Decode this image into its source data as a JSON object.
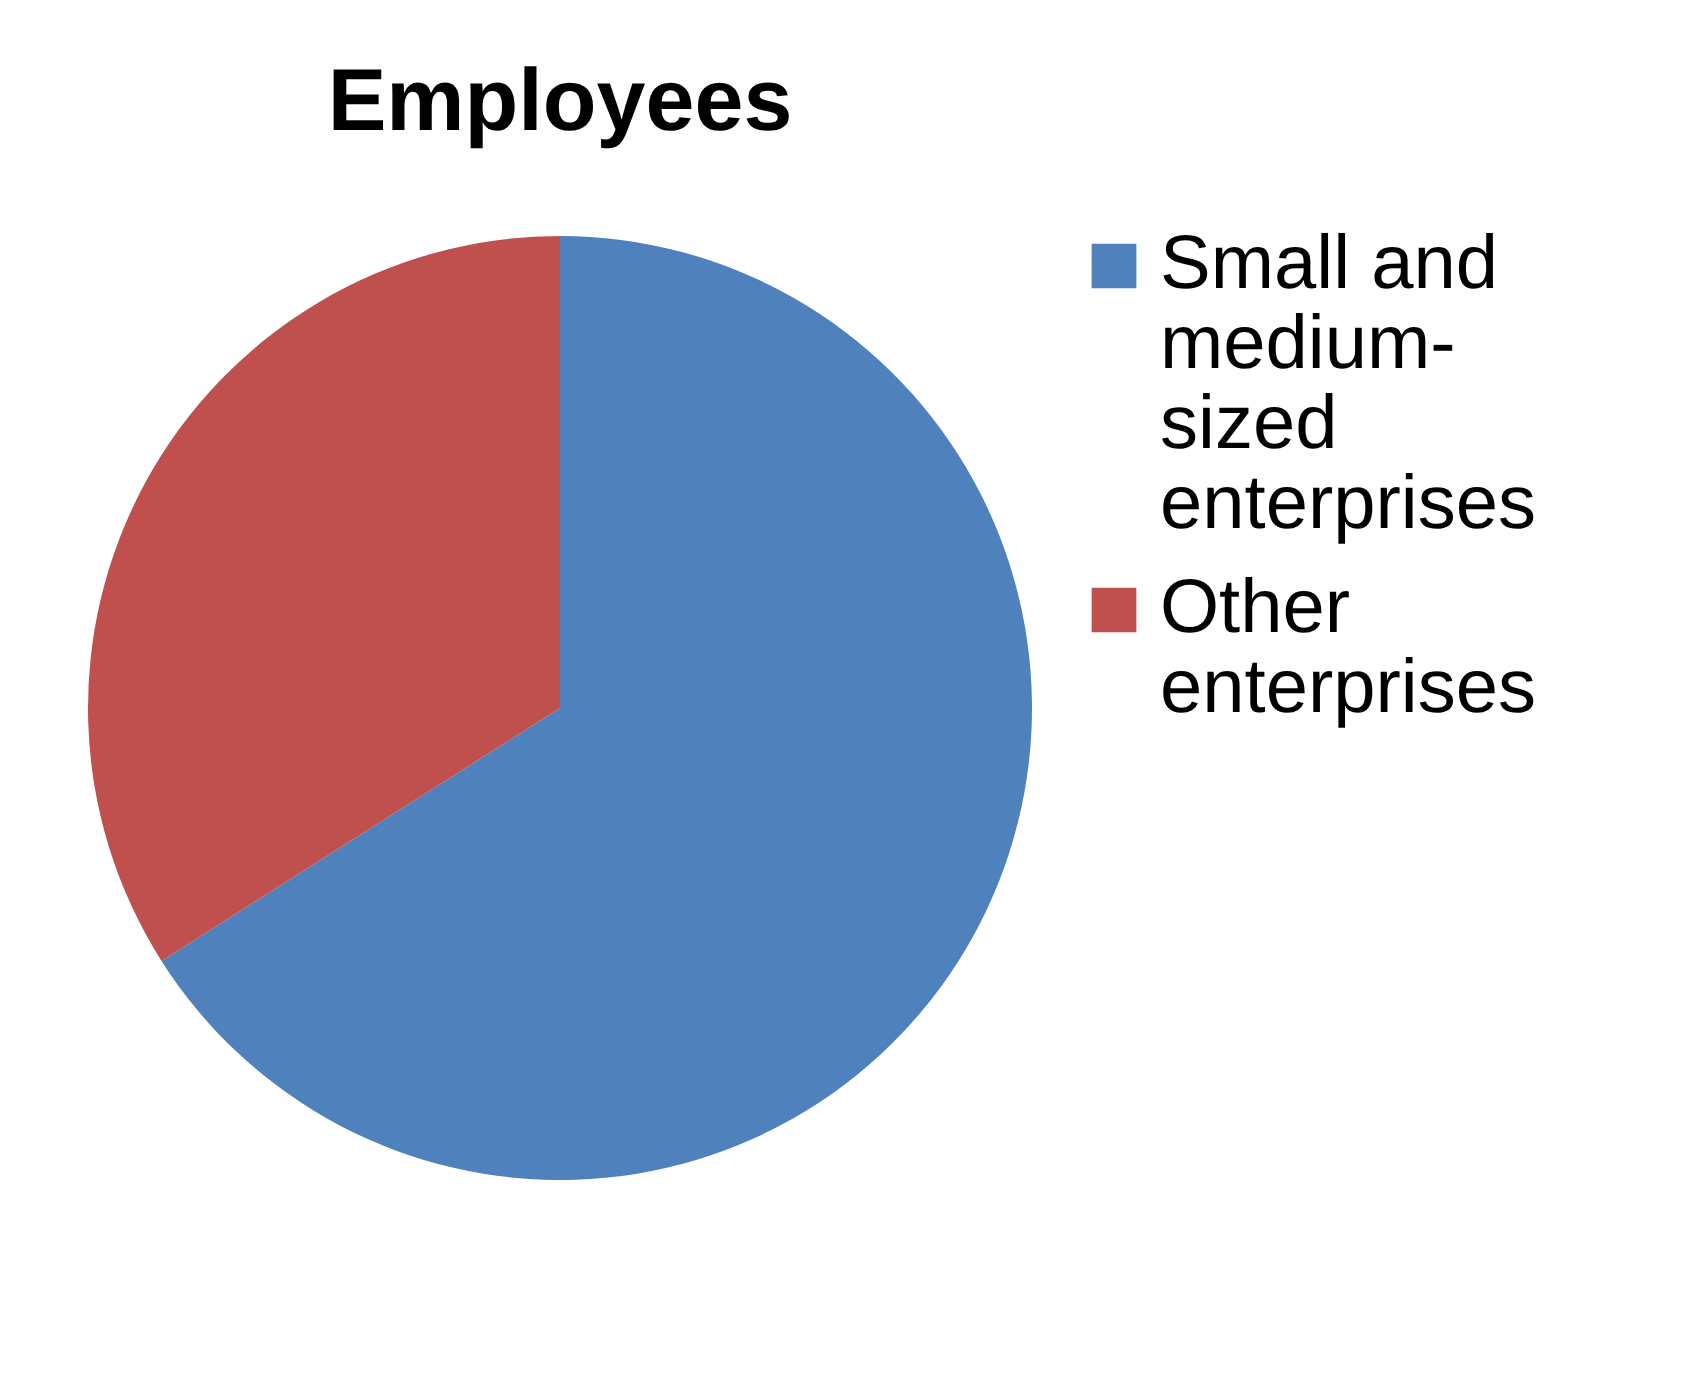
{
  "chart_data": {
    "type": "pie",
    "title": "Employees",
    "categories": [
      "Small and medium-sized enterprises",
      "Other enterprises"
    ],
    "values": [
      66,
      34
    ],
    "colors": [
      "#4f81bd",
      "#c0504d"
    ],
    "legend": "right"
  }
}
